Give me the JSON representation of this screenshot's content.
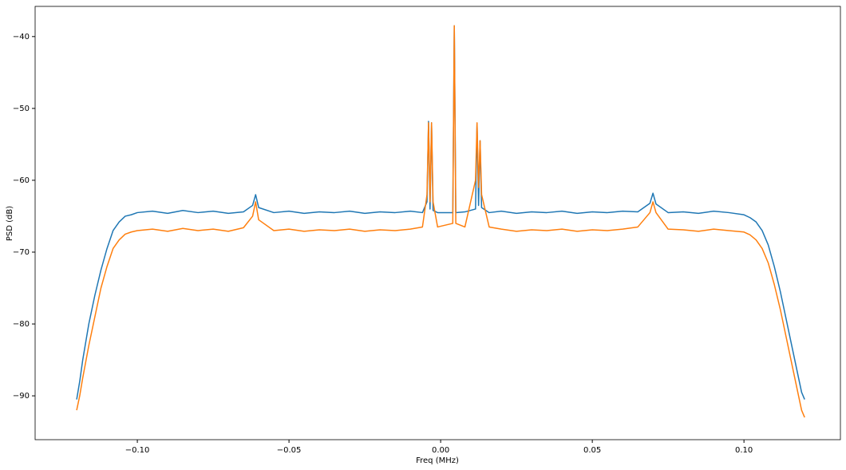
{
  "chart_data": {
    "type": "line",
    "xlabel": "Freq (MHz)",
    "ylabel": "PSD (dB)",
    "x": [
      -0.12,
      -0.119,
      -0.118,
      -0.116,
      -0.114,
      -0.112,
      -0.11,
      -0.108,
      -0.106,
      -0.104,
      -0.102,
      -0.1,
      -0.095,
      -0.09,
      -0.085,
      -0.08,
      -0.075,
      -0.07,
      -0.065,
      -0.062,
      -0.061,
      -0.06,
      -0.055,
      -0.05,
      -0.045,
      -0.04,
      -0.035,
      -0.03,
      -0.025,
      -0.02,
      -0.015,
      -0.01,
      -0.006,
      -0.0045,
      -0.004,
      -0.0035,
      -0.003,
      -0.0025,
      -0.001,
      0.004,
      0.0045,
      0.005,
      0.008,
      0.0115,
      0.012,
      0.0125,
      0.013,
      0.0135,
      0.016,
      0.02,
      0.025,
      0.03,
      0.035,
      0.04,
      0.045,
      0.05,
      0.055,
      0.06,
      0.065,
      0.069,
      0.07,
      0.071,
      0.075,
      0.08,
      0.085,
      0.09,
      0.095,
      0.1,
      0.102,
      0.104,
      0.106,
      0.108,
      0.11,
      0.112,
      0.114,
      0.116,
      0.118,
      0.119,
      0.12
    ],
    "series": [
      {
        "color": "#1f77b4",
        "values": [
          -90.5,
          -88,
          -85,
          -80,
          -76,
          -72.5,
          -69.5,
          -67,
          -65.8,
          -65,
          -64.8,
          -64.5,
          -64.3,
          -64.6,
          -64.2,
          -64.5,
          -64.3,
          -64.6,
          -64.4,
          -63.5,
          -62,
          -63.8,
          -64.5,
          -64.3,
          -64.6,
          -64.4,
          -64.5,
          -64.3,
          -64.6,
          -64.4,
          -64.5,
          -64.3,
          -64.5,
          -63,
          -51.8,
          -64,
          -52,
          -64.2,
          -64.5,
          -64.5,
          -38.5,
          -64.5,
          -64.4,
          -64,
          -52.2,
          -63.5,
          -54.5,
          -63.8,
          -64.5,
          -64.3,
          -64.6,
          -64.4,
          -64.5,
          -64.3,
          -64.6,
          -64.4,
          -64.5,
          -64.3,
          -64.4,
          -63.2,
          -61.8,
          -63.3,
          -64.5,
          -64.4,
          -64.6,
          -64.3,
          -64.5,
          -64.8,
          -65.2,
          -65.8,
          -67,
          -69,
          -72,
          -75.5,
          -79.5,
          -83.5,
          -87.5,
          -89.5,
          -90.5
        ]
      },
      {
        "color": "#ff7f0e",
        "values": [
          -92,
          -90,
          -87.5,
          -83,
          -79,
          -75,
          -72,
          -69.5,
          -68.3,
          -67.5,
          -67.2,
          -67,
          -66.8,
          -67.1,
          -66.7,
          -67,
          -66.8,
          -67.1,
          -66.6,
          -65,
          -63,
          -65.5,
          -67,
          -66.8,
          -67.1,
          -66.9,
          -67,
          -66.8,
          -67.1,
          -66.9,
          -67,
          -66.8,
          -66.5,
          -62,
          -52,
          -63,
          -52,
          -63,
          -66.5,
          -66,
          -38.5,
          -66,
          -66.5,
          -60,
          -52,
          -61,
          -54.5,
          -62,
          -66.5,
          -66.8,
          -67.1,
          -66.9,
          -67,
          -66.8,
          -67.1,
          -66.9,
          -67,
          -66.8,
          -66.5,
          -64.5,
          -63,
          -64.5,
          -66.8,
          -66.9,
          -67.1,
          -66.8,
          -67,
          -67.2,
          -67.6,
          -68.3,
          -69.5,
          -71.5,
          -74.5,
          -78,
          -82,
          -86,
          -90,
          -92,
          -93
        ]
      }
    ],
    "xlim": [
      -0.1337,
      0.1318
    ],
    "xticks": [
      {
        "value": -0.1,
        "label": "−0.10"
      },
      {
        "value": -0.05,
        "label": "−0.05"
      },
      {
        "value": 0,
        "label": "0.00"
      },
      0.05,
      {
        "value": 0.1,
        "label": "0.10"
      }
    ],
    "ylim": [
      -96.1,
      -35.8
    ],
    "yticks": [
      {
        "value": -90,
        "label": "−90"
      },
      {
        "value": -80,
        "label": "−80"
      },
      {
        "value": -70,
        "label": "−70"
      },
      {
        "value": -60,
        "label": "−60"
      },
      {
        "value": -50,
        "label": "−50"
      },
      {
        "value": -40,
        "label": "−40"
      }
    ]
  }
}
